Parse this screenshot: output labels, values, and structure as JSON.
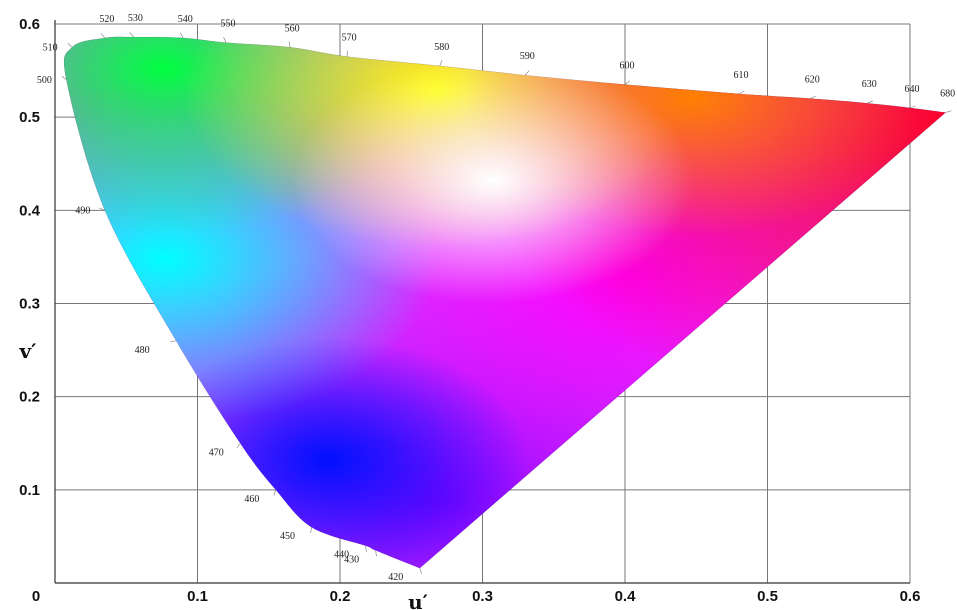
{
  "chart_data": {
    "type": "scatter",
    "title": "",
    "xlabel": "u′",
    "ylabel": "v′",
    "xlim": [
      0,
      0.6
    ],
    "ylim": [
      0,
      0.6
    ],
    "grid": true,
    "x_ticks": [
      "0",
      "0.1",
      "0.2",
      "0.3",
      "0.4",
      "0.5",
      "0.6"
    ],
    "y_ticks": [
      "0.1",
      "0.2",
      "0.3",
      "0.4",
      "0.5",
      "0.6"
    ],
    "x_tick_values": [
      0,
      0.1,
      0.2,
      0.3,
      0.4,
      0.5,
      0.6
    ],
    "y_tick_values": [
      0.1,
      0.2,
      0.3,
      0.4,
      0.5,
      0.6
    ],
    "spectral_locus": [
      {
        "label": "420",
        "u": 0.256,
        "v": 0.016
      },
      {
        "label": "430",
        "u": 0.225,
        "v": 0.035
      },
      {
        "label": "440",
        "u": 0.218,
        "v": 0.04
      },
      {
        "label": "450",
        "u": 0.18,
        "v": 0.06
      },
      {
        "label": "460",
        "u": 0.155,
        "v": 0.1
      },
      {
        "label": "470",
        "u": 0.13,
        "v": 0.15
      },
      {
        "label": "480",
        "u": 0.085,
        "v": 0.26
      },
      {
        "label": "490",
        "u": 0.035,
        "v": 0.4
      },
      {
        "label": "500",
        "u": 0.008,
        "v": 0.54
      },
      {
        "label": "510",
        "u": 0.012,
        "v": 0.575
      },
      {
        "label": "520",
        "u": 0.035,
        "v": 0.585
      },
      {
        "label": "530",
        "u": 0.055,
        "v": 0.586
      },
      {
        "label": "540",
        "u": 0.09,
        "v": 0.585
      },
      {
        "label": "550",
        "u": 0.12,
        "v": 0.58
      },
      {
        "label": "560",
        "u": 0.165,
        "v": 0.575
      },
      {
        "label": "570",
        "u": 0.205,
        "v": 0.565
      },
      {
        "label": "580",
        "u": 0.27,
        "v": 0.555
      },
      {
        "label": "590",
        "u": 0.33,
        "v": 0.545
      },
      {
        "label": "600",
        "u": 0.4,
        "v": 0.535
      },
      {
        "label": "610",
        "u": 0.48,
        "v": 0.525
      },
      {
        "label": "620",
        "u": 0.53,
        "v": 0.52
      },
      {
        "label": "630",
        "u": 0.57,
        "v": 0.515
      },
      {
        "label": "640",
        "u": 0.6,
        "v": 0.51
      },
      {
        "label": "680",
        "u": 0.625,
        "v": 0.505
      }
    ]
  }
}
